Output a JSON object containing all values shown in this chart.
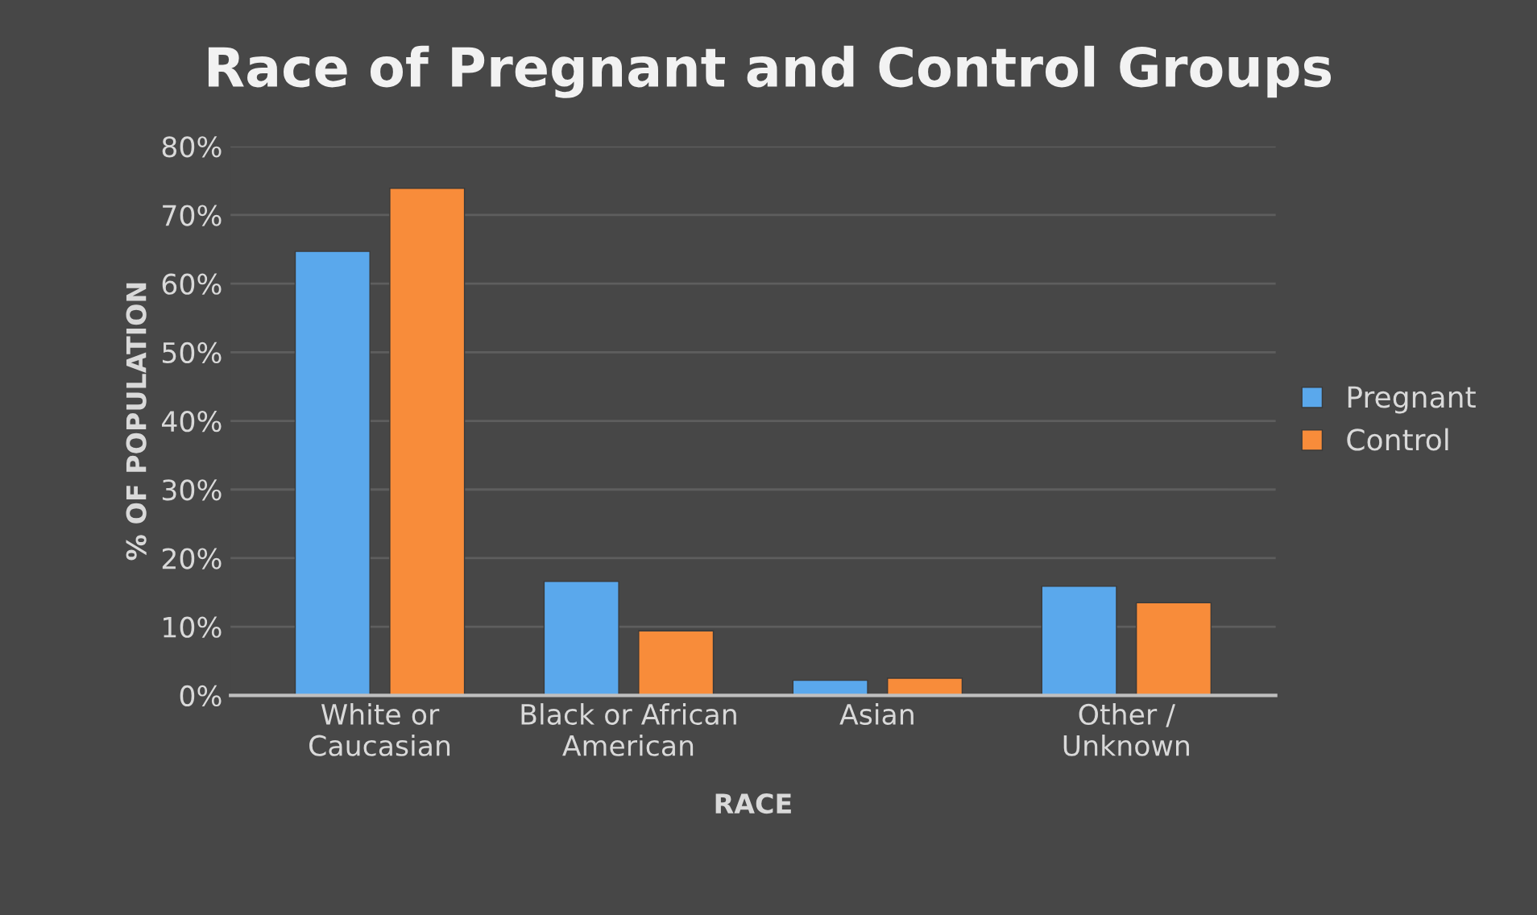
{
  "chart_data": {
    "type": "bar",
    "title": "Race of Pregnant and Control Groups",
    "xlabel": "RACE",
    "ylabel": "% OF POPULATION",
    "categories": [
      "White or\nCaucasian",
      "Black or African\nAmerican",
      "Asian",
      "Other /\nUnknown"
    ],
    "series": [
      {
        "name": "Pregnant",
        "color": "#5aa8ec",
        "values": [
          64.7,
          16.6,
          2.2,
          15.9
        ]
      },
      {
        "name": "Control",
        "color": "#f88c3a",
        "values": [
          73.9,
          9.4,
          2.5,
          13.5
        ]
      }
    ],
    "ylim": [
      0,
      80
    ],
    "yticks": [
      {
        "value": 0,
        "label": "0%"
      },
      {
        "value": 10,
        "label": "10%"
      },
      {
        "value": 20,
        "label": "20%"
      },
      {
        "value": 30,
        "label": "30%"
      },
      {
        "value": 40,
        "label": "40%"
      },
      {
        "value": 50,
        "label": "50%"
      },
      {
        "value": 60,
        "label": "60%"
      },
      {
        "value": 70,
        "label": "70%"
      },
      {
        "value": 80,
        "label": "80%"
      }
    ],
    "grid": "y",
    "legend": "right"
  }
}
